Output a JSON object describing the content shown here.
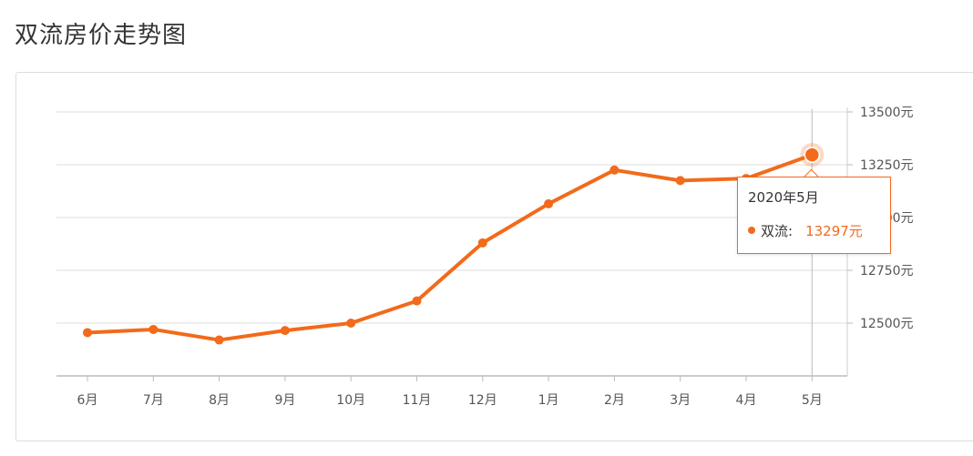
{
  "page": {
    "title": "双流房价走势图"
  },
  "tooltip": {
    "title": "2020年5月",
    "series_name": "双流:",
    "value": "13297元"
  },
  "colors": {
    "line": "#f26a1b",
    "grid": "#dddddd",
    "axis_text": "#555555"
  },
  "chart_data": {
    "type": "line",
    "title": "双流房价走势图",
    "categories": [
      "6月",
      "7月",
      "8月",
      "9月",
      "10月",
      "11月",
      "12月",
      "1月",
      "2月",
      "3月",
      "4月",
      "5月"
    ],
    "series": [
      {
        "name": "双流",
        "values": [
          12455,
          12470,
          12420,
          12465,
          12500,
          12605,
          12880,
          13065,
          13225,
          13175,
          13185,
          13297
        ]
      }
    ],
    "y_ticks": [
      12500,
      12750,
      13000,
      13250,
      13500
    ],
    "y_tick_labels": [
      "12500元",
      "12750元",
      "13000元",
      "13250元",
      "13500元"
    ],
    "ylim": [
      12250,
      13500
    ],
    "y_axis_position": "right",
    "grid": true,
    "highlighted_category": "5月"
  }
}
